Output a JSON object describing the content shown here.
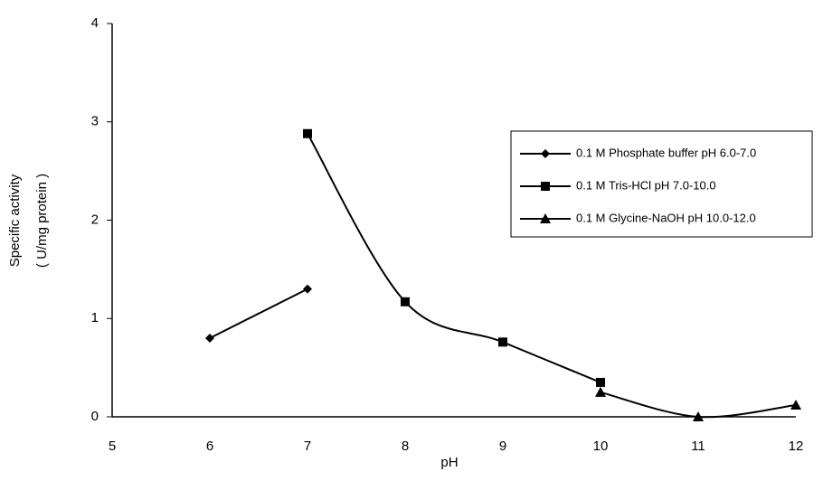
{
  "chart_data": {
    "type": "line",
    "x_label": "pH",
    "y_label": [
      "Specific activity",
      "( U/mg protein )"
    ],
    "xlim": [
      5,
      12
    ],
    "xticks": [
      5,
      6,
      7,
      8,
      9,
      10,
      11,
      12
    ],
    "ylim": [
      0,
      4
    ],
    "yticks": [
      0,
      1,
      2,
      3,
      4
    ],
    "smooth": true,
    "series": [
      {
        "name": "0.1 M Phosphate buffer pH 6.0-7.0",
        "color": "#000000",
        "marker": "diamond",
        "x": [
          6,
          7
        ],
        "values": [
          0.8,
          1.3
        ]
      },
      {
        "name": "0.1 M Tris-HCl pH 7.0-10.0",
        "color": "#000000",
        "marker": "square",
        "x": [
          7,
          8,
          9,
          10
        ],
        "values": [
          2.88,
          1.17,
          0.76,
          0.35
        ]
      },
      {
        "name": "0.1 M Glycine-NaOH pH 10.0-12.0",
        "color": "#000000",
        "marker": "triangle",
        "x": [
          10,
          11,
          12
        ],
        "values": [
          0.25,
          0,
          0.12
        ]
      }
    ]
  }
}
